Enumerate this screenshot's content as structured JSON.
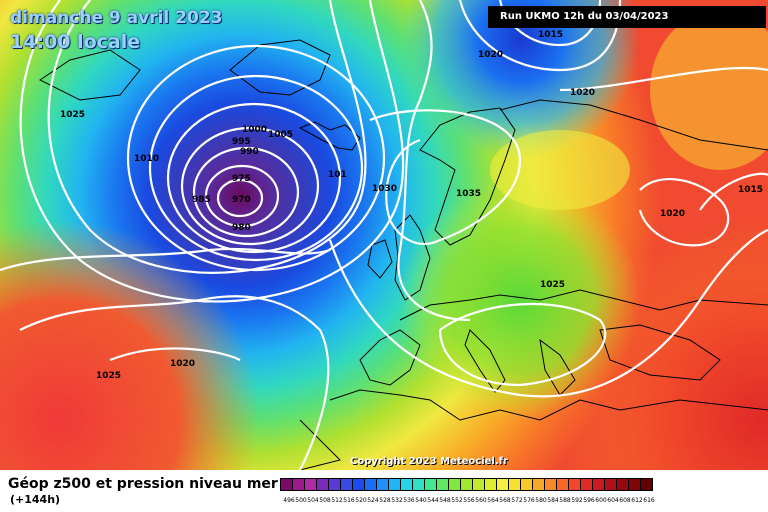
{
  "header": {
    "date_line": "dimanche 9 avril 2023",
    "time_line": "14:00 locale",
    "run_info": "Run UKMO 12h du 03/04/2023"
  },
  "footer": {
    "copyright": "Copyright 2023 Meteociel.fr",
    "description": "Géop z500 et pression niveau mer",
    "lead": "(+144h)"
  },
  "legend": {
    "values": [
      "496",
      "500",
      "504",
      "508",
      "512",
      "516",
      "520",
      "524",
      "528",
      "532",
      "536",
      "540",
      "544",
      "548",
      "552",
      "556",
      "560",
      "564",
      "568",
      "572",
      "576",
      "580",
      "584",
      "588",
      "592",
      "596",
      "600",
      "604",
      "608",
      "612",
      "616"
    ],
    "colors": [
      "#7a0a6a",
      "#9a1a8a",
      "#b02aa6",
      "#7a2ab8",
      "#5a3ad0",
      "#3a4ae0",
      "#1a4af0",
      "#1a6ef5",
      "#1e90f8",
      "#22b4f8",
      "#28d4e8",
      "#30e0c0",
      "#40e890",
      "#60e860",
      "#80e840",
      "#a0e830",
      "#c0ea30",
      "#e0ec30",
      "#f8f040",
      "#f8e030",
      "#f8c828",
      "#f8a828",
      "#f88828",
      "#f86828",
      "#f04828",
      "#e02a28",
      "#c81a20",
      "#b01018",
      "#980810",
      "#800408",
      "#600000"
    ]
  },
  "pressure_labels": [
    {
      "text": "1025",
      "kind": "iso"
    },
    {
      "text": "1010",
      "kind": "iso"
    },
    {
      "text": "1000",
      "kind": "iso"
    },
    {
      "text": "1005",
      "kind": "iso"
    },
    {
      "text": "995",
      "kind": "iso"
    },
    {
      "text": "990",
      "kind": "iso"
    },
    {
      "text": "975",
      "kind": "iso"
    },
    {
      "text": "985",
      "kind": "iso"
    },
    {
      "text": "970",
      "kind": "low-center"
    },
    {
      "text": "980",
      "kind": "iso"
    },
    {
      "text": "101",
      "kind": "iso"
    },
    {
      "text": "1030",
      "kind": "iso"
    },
    {
      "text": "1035",
      "kind": "iso"
    },
    {
      "text": "1020",
      "kind": "iso"
    },
    {
      "text": "1015",
      "kind": "iso"
    },
    {
      "text": "1020",
      "kind": "iso"
    },
    {
      "text": "1020",
      "kind": "iso"
    },
    {
      "text": "1015",
      "kind": "iso"
    },
    {
      "text": "1025",
      "kind": "iso"
    },
    {
      "text": "1020",
      "kind": "iso"
    },
    {
      "text": "1025",
      "kind": "iso"
    }
  ]
}
